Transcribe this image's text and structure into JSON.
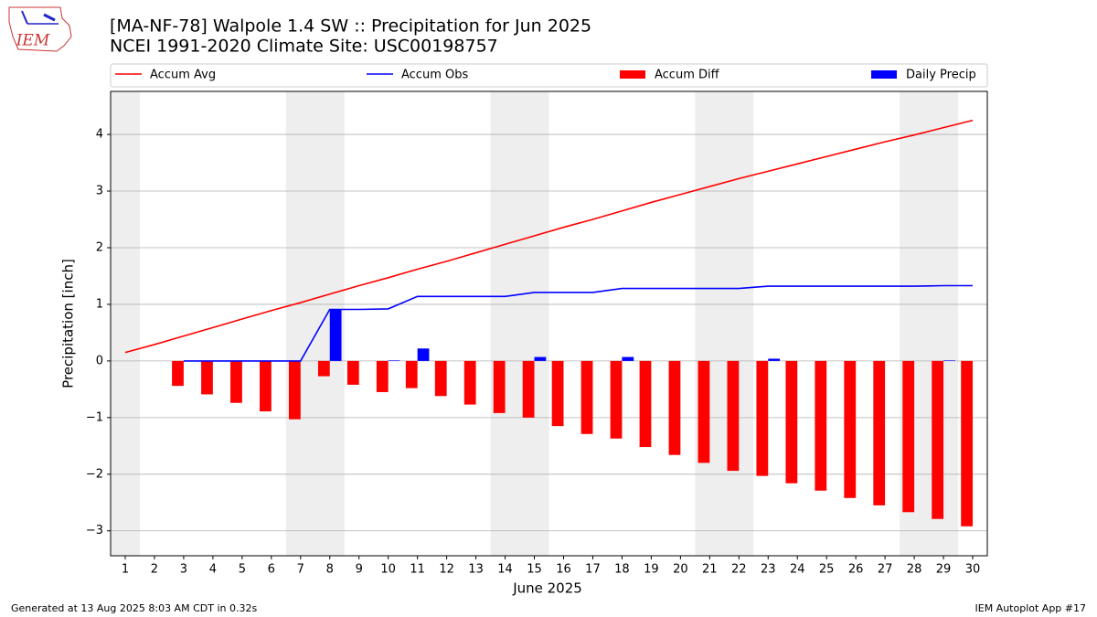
{
  "chart_data": {
    "type": "bar_line",
    "title": "[MA-NF-78] Walpole 1.4 SW :: Precipitation for Jun 2025",
    "subtitle": "NCEI 1991-2020 Climate Site: USC00198757",
    "x_label": "June 2025",
    "y_label": "Precipitation [inch]",
    "logo_text": "IEM",
    "footer_left": "Generated at 13 Aug 2025 8:03 AM CDT in 0.32s",
    "footer_right": "IEM Autoplot App #17",
    "x": [
      1,
      2,
      3,
      4,
      5,
      6,
      7,
      8,
      9,
      10,
      11,
      12,
      13,
      14,
      15,
      16,
      17,
      18,
      19,
      20,
      21,
      22,
      23,
      24,
      25,
      26,
      27,
      28,
      29,
      30
    ],
    "xlim": [
      0.5,
      30.5
    ],
    "xticks": [
      1,
      2,
      3,
      4,
      5,
      6,
      7,
      8,
      9,
      10,
      11,
      12,
      13,
      14,
      15,
      16,
      17,
      18,
      19,
      20,
      21,
      22,
      23,
      24,
      25,
      26,
      27,
      28,
      29,
      30
    ],
    "ylim": [
      -3.44,
      4.76
    ],
    "yticks": [
      {
        "value": -3,
        "label": "−3"
      },
      {
        "value": -2,
        "label": "−2"
      },
      {
        "value": -1,
        "label": "−1"
      },
      0,
      1,
      2,
      3,
      4
    ],
    "grid": true,
    "weekend_spans": [
      [
        0.5,
        1.5
      ],
      [
        6.5,
        8.5
      ],
      [
        13.5,
        15.5
      ],
      [
        20.5,
        22.5
      ],
      [
        27.5,
        29.5
      ]
    ],
    "weekend_color": "#eeeeee",
    "legend": "top",
    "series": [
      {
        "name": "Accum Avg",
        "type": "line",
        "color": "#ff0000",
        "values": [
          0.15,
          0.29,
          0.44,
          0.59,
          0.74,
          0.89,
          1.03,
          1.18,
          1.33,
          1.47,
          1.62,
          1.76,
          1.91,
          2.06,
          2.21,
          2.36,
          2.5,
          2.65,
          2.8,
          2.94,
          3.08,
          3.22,
          3.35,
          3.48,
          3.61,
          3.74,
          3.87,
          3.99,
          4.12,
          4.25
        ]
      },
      {
        "name": "Accum Obs",
        "type": "line",
        "color": "#0000ff",
        "values": [
          null,
          null,
          0,
          0,
          0,
          0,
          0,
          0.91,
          0.91,
          0.92,
          1.14,
          1.14,
          1.14,
          1.14,
          1.21,
          1.21,
          1.21,
          1.28,
          1.28,
          1.28,
          1.28,
          1.28,
          1.32,
          1.32,
          1.32,
          1.32,
          1.32,
          1.32,
          1.33,
          1.33
        ]
      },
      {
        "name": "Accum Diff",
        "type": "bar",
        "color": "#ff0000",
        "values": [
          null,
          null,
          -0.44,
          -0.59,
          -0.74,
          -0.89,
          -1.03,
          -0.27,
          -0.42,
          -0.55,
          -0.48,
          -0.62,
          -0.77,
          -0.92,
          -1.0,
          -1.15,
          -1.29,
          -1.37,
          -1.52,
          -1.66,
          -1.8,
          -1.94,
          -2.03,
          -2.16,
          -2.29,
          -2.42,
          -2.55,
          -2.67,
          -2.79,
          -2.92
        ]
      },
      {
        "name": "Daily Precip",
        "type": "bar",
        "color": "#0000ff",
        "values": [
          null,
          null,
          0,
          0,
          0,
          0,
          0,
          0.91,
          0,
          0.01,
          0.22,
          0,
          0,
          0,
          0.07,
          0,
          0,
          0.07,
          0,
          0,
          0,
          0,
          0.04,
          0,
          0,
          0,
          0,
          0,
          0.01,
          0
        ]
      }
    ]
  }
}
